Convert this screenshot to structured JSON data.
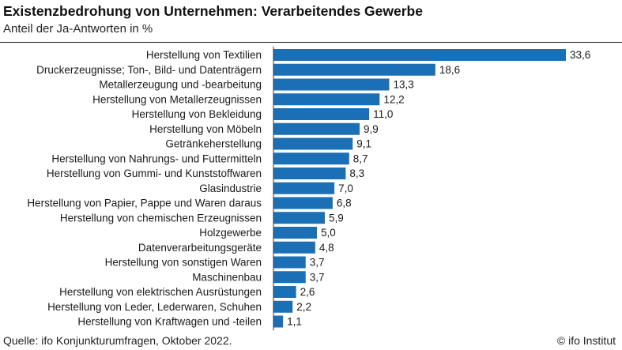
{
  "header": {
    "title": "Existenzbedrohung von Unternehmen: Verarbeitendes Gewerbe",
    "subtitle": "Anteil der Ja-Antworten in %"
  },
  "footer": {
    "source": "Quelle: ifo Konjunkturumfragen, Oktober 2022.",
    "brand": "© ifo Institut"
  },
  "colors": {
    "bar": "#1a6fb5",
    "axis": "#333333"
  },
  "chart_data": {
    "type": "bar",
    "orientation": "horizontal",
    "title": "Existenzbedrohung von Unternehmen: Verarbeitendes Gewerbe",
    "subtitle": "Anteil der Ja-Antworten in %",
    "categories": [
      "Herstellung von Textilien",
      "Druckerzeugnisse; Ton-, Bild- und Datenträgern",
      "Metallerzeugung und -bearbeitung",
      "Herstellung von Metallerzeugnissen",
      "Herstellung von Bekleidung",
      "Herstellung von Möbeln",
      "Getränkeherstellung",
      "Herstellung von Nahrungs- und Futtermitteln",
      "Herstellung von Gummi- und Kunststoffwaren",
      "Glasindustrie",
      "Herstellung von Papier, Pappe und Waren daraus",
      "Herstellung von chemischen Erzeugnissen",
      "Holzgewerbe",
      "Datenverarbeitungsgeräte",
      "Herstellung von sonstigen Waren",
      "Maschinenbau",
      "Herstellung von elektrischen Ausrüstungen",
      "Herstellung von Leder, Lederwaren, Schuhen",
      "Herstellung von Kraftwagen und -teilen"
    ],
    "values": [
      33.6,
      18.6,
      13.3,
      12.2,
      11.0,
      9.9,
      9.1,
      8.7,
      8.3,
      7.0,
      6.8,
      5.9,
      5.0,
      4.8,
      3.7,
      3.7,
      2.6,
      2.2,
      1.1
    ],
    "value_labels": [
      "33,6",
      "18,6",
      "13,3",
      "12,2",
      "11,0",
      "9,9",
      "9,1",
      "8,7",
      "8,3",
      "7,0",
      "6,8",
      "5,9",
      "5,0",
      "4,8",
      "3,7",
      "3,7",
      "2,6",
      "2,2",
      "1,1"
    ],
    "xlim": [
      0,
      33.6
    ],
    "grid": false,
    "legend": "none"
  }
}
